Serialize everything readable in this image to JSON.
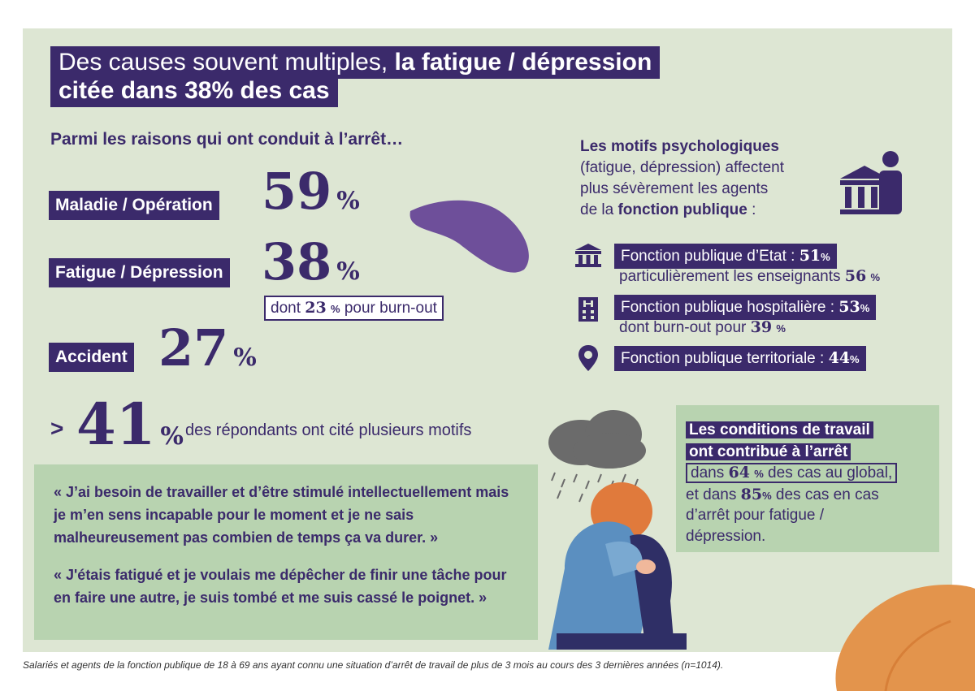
{
  "title": {
    "line1_regular": "Des causes souvent multiples, ",
    "line1_bold": "la fatigue / dépression",
    "line2": "citée dans 38% des cas"
  },
  "reasons": {
    "heading": "Parmi les raisons qui ont conduit à l’arrêt…",
    "items": [
      {
        "label": "Maladie / Opération",
        "value": "59",
        "unit": "%"
      },
      {
        "label": "Fatigue / Dépression",
        "value": "38",
        "unit": "%"
      },
      {
        "label": "Accident",
        "value": "27",
        "unit": "%"
      }
    ],
    "burnout_note_prefix": "dont ",
    "burnout_note_value": "23",
    "burnout_note_unit": "%",
    "burnout_note_suffix": " pour burn-out",
    "multi_marker": ">",
    "multi_value": "41",
    "multi_unit": "%",
    "multi_text": "des répondants ont cité plusieurs motifs"
  },
  "psych": {
    "heading_lines": [
      "Les motifs psychologiques",
      "(fatigue, dépression) affectent",
      "plus sévèrement les agents"
    ],
    "heading_last_prefix": "de la ",
    "heading_last_bold": "fonction publique",
    "heading_last_suffix": " :",
    "items": [
      {
        "label": "Fonction publique d’Etat : ",
        "value": "51",
        "unit": "%",
        "sub_text": "particulièrement les enseignants ",
        "sub_value": "56",
        "sub_unit": "%",
        "icon": "government-building-icon"
      },
      {
        "label": "Fonction publique hospitalière : ",
        "value": "53",
        "unit": "%",
        "sub_text": "dont burn-out pour ",
        "sub_value": "39",
        "sub_unit": "%",
        "icon": "hospital-building-icon"
      },
      {
        "label": "Fonction publique territoriale : ",
        "value": "44",
        "unit": "%",
        "icon": "location-pin-icon"
      }
    ]
  },
  "conditions": {
    "line1": "Les conditions de travail",
    "line2": "ont contribué à l’arrêt",
    "line3_prefix": "dans ",
    "line3_value": "64",
    "line3_unit": "%",
    "line3_suffix": " des cas au global,",
    "line4_prefix": "et dans ",
    "line4_value": "85",
    "line4_unit": "%",
    "line4_suffix": " des cas en cas",
    "line5": "d’arrêt pour fatigue /",
    "line6": "dépression."
  },
  "quotes": [
    "« J’ai besoin de travailler et d’être stimulé intellectuellement mais je m’en sens incapable pour le moment et je ne sais malheureusement pas combien de temps ça va durer. »",
    "« J'étais fatigué et je voulais me dépêcher de finir une tâche pour en faire une autre, je suis tombé et me suis cassé le poignet. »"
  ],
  "footnote": "Salariés et agents de la fonction publique de 18 à 69 ans ayant connu une situation d’arrêt de travail de plus de 3 mois au cours des 3 dernières années (n=1014).",
  "colors": {
    "primary": "#3b2a6b",
    "background": "#dde6d3",
    "accent_green": "#b8d3b0",
    "blob": "#6e4f9a",
    "leaf": "#e3944c"
  }
}
